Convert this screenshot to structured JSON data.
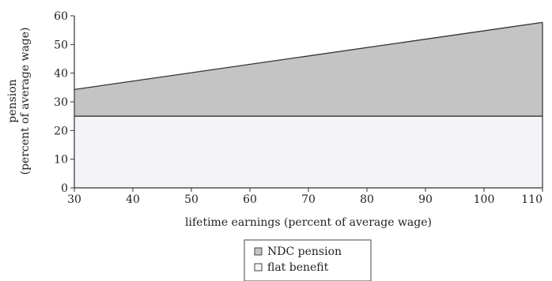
{
  "chart_data": {
    "type": "area",
    "xlabel": "lifetime earnings (percent of average wage)",
    "ylabel_line1": "pension",
    "ylabel_line2": "(percent of average wage)",
    "xlim": [
      30,
      110
    ],
    "ylim": [
      0,
      60
    ],
    "x_ticks": [
      30,
      40,
      50,
      60,
      70,
      80,
      90,
      100,
      110
    ],
    "y_ticks": [
      0,
      10,
      20,
      30,
      40,
      50,
      60
    ],
    "grid": false,
    "legend_position": "bottom-center",
    "series": [
      {
        "name": "NDC pension",
        "stacked_on": "flat benefit",
        "x": [
          30,
          110
        ],
        "y_bottom": [
          25,
          25
        ],
        "y_top": [
          34.3,
          57.7
        ],
        "color": "#c4c4c4"
      },
      {
        "name": "flat benefit",
        "x": [
          30,
          110
        ],
        "y_bottom": [
          0,
          0
        ],
        "y_top": [
          25,
          25
        ],
        "color": "#f4f4f8"
      }
    ]
  }
}
